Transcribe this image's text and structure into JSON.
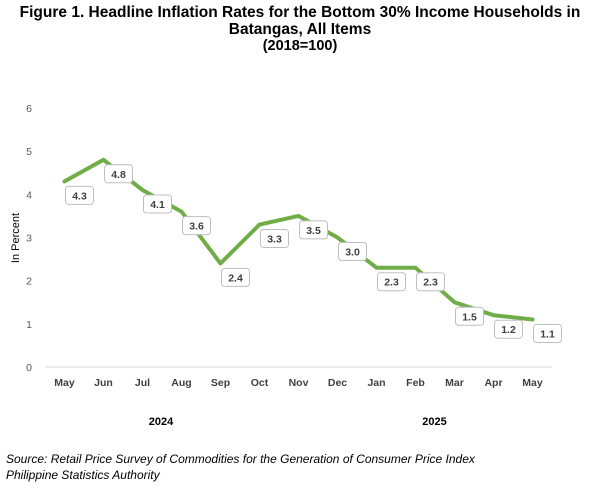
{
  "title": {
    "line1": "Figure 1. Headline Inflation Rates for the Bottom 30% Income Households in",
    "line2": "Batangas, All Items",
    "line3": "(2018=100)"
  },
  "source": {
    "line1": "Source: Retail Price Survey of Commodities for the Generation of Consumer Price Index",
    "line2": "Philippine Statistics Authority"
  },
  "chart_data": {
    "type": "line",
    "categories": [
      "May",
      "Jun",
      "Jul",
      "Aug",
      "Sep",
      "Oct",
      "Nov",
      "Dec",
      "Jan",
      "Feb",
      "Mar",
      "Apr",
      "May"
    ],
    "year_labels": [
      "2024",
      "2025"
    ],
    "series": [
      {
        "values": [
          4.3,
          4.8,
          4.1,
          3.6,
          2.4,
          3.3,
          3.5,
          3.0,
          2.3,
          2.3,
          1.5,
          1.2,
          1.1
        ],
        "color": "#70AD47"
      }
    ],
    "ylabel": "In Percent",
    "xlabel": "",
    "ylim": [
      0,
      6
    ],
    "yticks": [
      0,
      1,
      2,
      3,
      4,
      5,
      6
    ],
    "grid": false,
    "legend": "none",
    "data_labels": true
  }
}
